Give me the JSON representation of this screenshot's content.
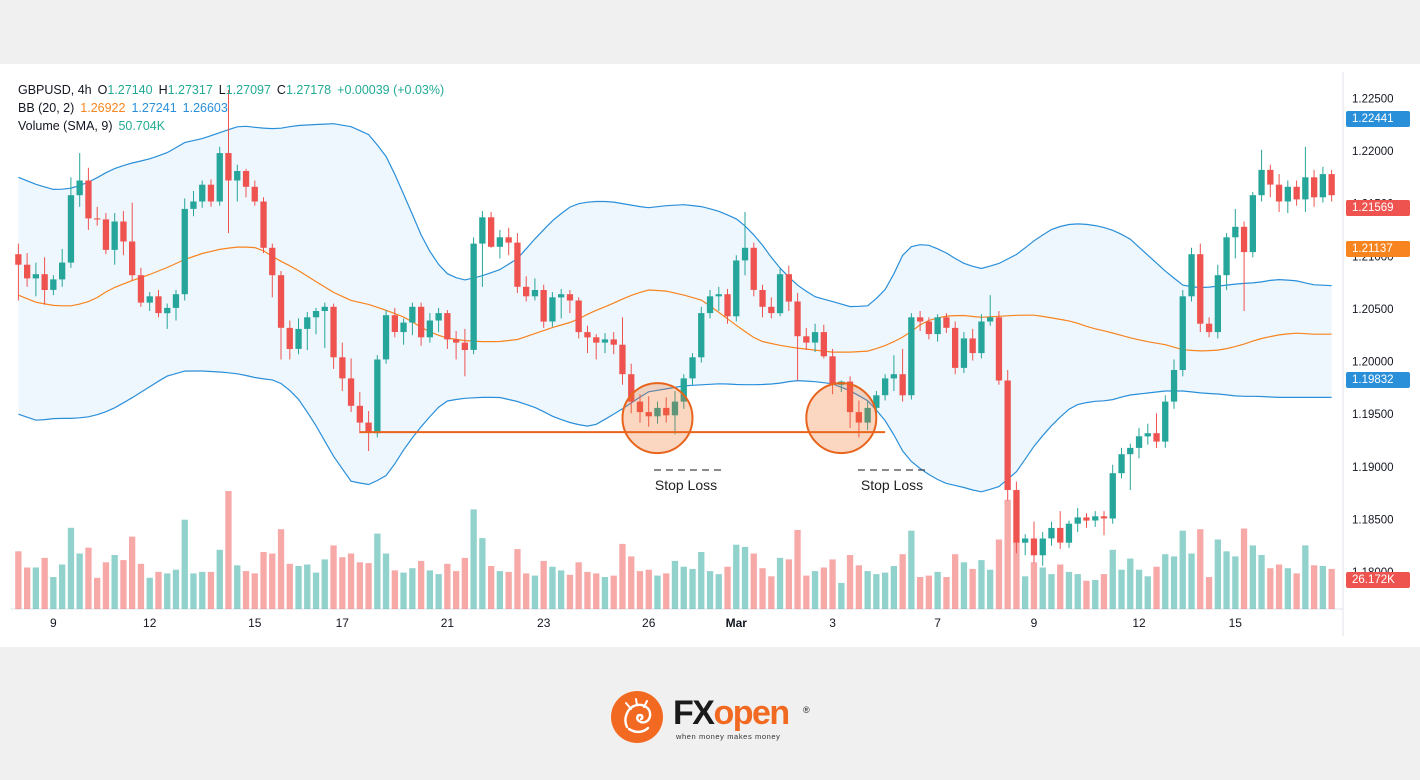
{
  "legend": {
    "symbol": "GBPUSD, 4h",
    "o_label": "O",
    "o": "1.27140",
    "h_label": "H",
    "h": "1.27317",
    "l_label": "L",
    "l": "1.27097",
    "c_label": "C",
    "c": "1.27178",
    "change": "+0.00039 (+0.03%)",
    "bb_label": "BB (20, 2)",
    "bb_basis": "1.26922",
    "bb_upper": "1.27241",
    "bb_lower": "1.26603",
    "vol_label": "Volume (SMA, 9)",
    "vol_value": "50.704K"
  },
  "price_axis_ticks": [
    "1.22500",
    "1.22000",
    "1.21500",
    "1.21000",
    "1.20500",
    "1.20000",
    "1.19500",
    "1.19000",
    "1.18500",
    "1.18000"
  ],
  "price_tags": [
    {
      "value": "1.22441",
      "color": "#2a8fd9"
    },
    {
      "value": "1.21569",
      "color": "#ef5350"
    },
    {
      "value": "1.21137",
      "color": "#f7841f"
    },
    {
      "value": "1.19832",
      "color": "#2a8fd9"
    },
    {
      "value": "26.172K",
      "color": "#ef5350"
    }
  ],
  "time_axis_labels": [
    "9",
    "12",
    "15",
    "17",
    "21",
    "23",
    "26",
    "Mar",
    "3",
    "7",
    "9",
    "12",
    "15"
  ],
  "annotations": {
    "stop_loss_1": "Stop Loss",
    "stop_loss_2": "Stop Loss",
    "support_level": 1.1933
  },
  "brand": {
    "name_fx": "FX",
    "name_open": "open",
    "registered": "®",
    "tagline": "when money makes money"
  },
  "colors": {
    "up": "#26a69a",
    "down": "#ef5350",
    "bb_band": "#2a8fd9",
    "bb_basis": "#f7841f",
    "support": "#e8641c"
  },
  "chart_data": {
    "type": "candlestick",
    "title": "",
    "symbol": "GBPUSD",
    "timeframe": "4h",
    "ylim": [
      1.1765,
      1.2275
    ],
    "candles": [
      {
        "o": 1.2102,
        "h": 1.2112,
        "l": 1.2058,
        "c": 1.2092
      },
      {
        "o": 1.2092,
        "h": 1.2103,
        "l": 1.2071,
        "c": 1.2079
      },
      {
        "o": 1.2079,
        "h": 1.2094,
        "l": 1.2062,
        "c": 1.2083
      },
      {
        "o": 1.2083,
        "h": 1.2099,
        "l": 1.2054,
        "c": 1.2068
      },
      {
        "o": 1.2068,
        "h": 1.2082,
        "l": 1.2063,
        "c": 1.2078
      },
      {
        "o": 1.2078,
        "h": 1.2107,
        "l": 1.2071,
        "c": 1.2094
      },
      {
        "o": 1.2094,
        "h": 1.2175,
        "l": 1.2089,
        "c": 1.2158
      },
      {
        "o": 1.2158,
        "h": 1.2198,
        "l": 1.2147,
        "c": 1.2172
      },
      {
        "o": 1.2172,
        "h": 1.2184,
        "l": 1.2125,
        "c": 1.2136
      },
      {
        "o": 1.2136,
        "h": 1.2147,
        "l": 1.2129,
        "c": 1.2135
      },
      {
        "o": 1.2135,
        "h": 1.2141,
        "l": 1.2102,
        "c": 1.2106
      },
      {
        "o": 1.2106,
        "h": 1.2141,
        "l": 1.2092,
        "c": 1.2133
      },
      {
        "o": 1.2133,
        "h": 1.2143,
        "l": 1.2101,
        "c": 1.2114
      },
      {
        "o": 1.2114,
        "h": 1.2151,
        "l": 1.2077,
        "c": 1.2082
      },
      {
        "o": 1.2082,
        "h": 1.2089,
        "l": 1.2052,
        "c": 1.2056
      },
      {
        "o": 1.2056,
        "h": 1.2066,
        "l": 1.2048,
        "c": 1.2062
      },
      {
        "o": 1.2062,
        "h": 1.2068,
        "l": 1.2042,
        "c": 1.2046
      },
      {
        "o": 1.2046,
        "h": 1.2055,
        "l": 1.2031,
        "c": 1.2051
      },
      {
        "o": 1.2051,
        "h": 1.2068,
        "l": 1.2039,
        "c": 1.2064
      },
      {
        "o": 1.2064,
        "h": 1.2155,
        "l": 1.2058,
        "c": 1.2145
      },
      {
        "o": 1.2145,
        "h": 1.2162,
        "l": 1.2138,
        "c": 1.2152
      },
      {
        "o": 1.2152,
        "h": 1.2172,
        "l": 1.2146,
        "c": 1.2168
      },
      {
        "o": 1.2168,
        "h": 1.2173,
        "l": 1.2147,
        "c": 1.2152
      },
      {
        "o": 1.2152,
        "h": 1.2204,
        "l": 1.2148,
        "c": 1.2198
      },
      {
        "o": 1.2198,
        "h": 1.2258,
        "l": 1.2122,
        "c": 1.2172
      },
      {
        "o": 1.2172,
        "h": 1.2187,
        "l": 1.2152,
        "c": 1.2181
      },
      {
        "o": 1.2181,
        "h": 1.2183,
        "l": 1.2156,
        "c": 1.2166
      },
      {
        "o": 1.2166,
        "h": 1.2172,
        "l": 1.2148,
        "c": 1.2152
      },
      {
        "o": 1.2152,
        "h": 1.2156,
        "l": 1.2103,
        "c": 1.2108
      },
      {
        "o": 1.2108,
        "h": 1.2112,
        "l": 1.2061,
        "c": 1.2082
      },
      {
        "o": 1.2082,
        "h": 1.2086,
        "l": 1.2002,
        "c": 1.2032
      },
      {
        "o": 1.2032,
        "h": 1.2039,
        "l": 1.2002,
        "c": 1.2012
      },
      {
        "o": 1.2012,
        "h": 1.2041,
        "l": 1.2007,
        "c": 1.2031
      },
      {
        "o": 1.2031,
        "h": 1.2047,
        "l": 1.2011,
        "c": 1.2042
      },
      {
        "o": 1.2042,
        "h": 1.2051,
        "l": 1.2026,
        "c": 1.2048
      },
      {
        "o": 1.2048,
        "h": 1.2056,
        "l": 1.2013,
        "c": 1.2052
      },
      {
        "o": 1.2052,
        "h": 1.2055,
        "l": 1.1993,
        "c": 1.2004
      },
      {
        "o": 1.2004,
        "h": 1.2018,
        "l": 1.1972,
        "c": 1.1984
      },
      {
        "o": 1.1984,
        "h": 1.2003,
        "l": 1.1952,
        "c": 1.1958
      },
      {
        "o": 1.1958,
        "h": 1.1971,
        "l": 1.1932,
        "c": 1.1942
      },
      {
        "o": 1.1942,
        "h": 1.1953,
        "l": 1.1915,
        "c": 1.1932
      },
      {
        "o": 1.1932,
        "h": 1.2006,
        "l": 1.1928,
        "c": 1.2002
      },
      {
        "o": 1.2002,
        "h": 1.2049,
        "l": 1.1998,
        "c": 1.2044
      },
      {
        "o": 1.2044,
        "h": 1.2051,
        "l": 1.2023,
        "c": 1.2028
      },
      {
        "o": 1.2028,
        "h": 1.2041,
        "l": 1.2016,
        "c": 1.2037
      },
      {
        "o": 1.2037,
        "h": 1.2056,
        "l": 1.2025,
        "c": 1.2052
      },
      {
        "o": 1.2052,
        "h": 1.2056,
        "l": 1.2015,
        "c": 1.2023
      },
      {
        "o": 1.2023,
        "h": 1.2046,
        "l": 1.2018,
        "c": 1.2039
      },
      {
        "o": 1.2039,
        "h": 1.2051,
        "l": 1.2028,
        "c": 1.2046
      },
      {
        "o": 1.2046,
        "h": 1.2049,
        "l": 1.2012,
        "c": 1.2021
      },
      {
        "o": 1.2021,
        "h": 1.2029,
        "l": 1.2002,
        "c": 1.2018
      },
      {
        "o": 1.2018,
        "h": 1.2031,
        "l": 1.1986,
        "c": 1.2011
      },
      {
        "o": 1.2011,
        "h": 1.2118,
        "l": 1.2007,
        "c": 1.2112
      },
      {
        "o": 1.2112,
        "h": 1.2143,
        "l": 1.2071,
        "c": 1.2137
      },
      {
        "o": 1.2137,
        "h": 1.2142,
        "l": 1.2108,
        "c": 1.2109
      },
      {
        "o": 1.2109,
        "h": 1.2125,
        "l": 1.2098,
        "c": 1.2118
      },
      {
        "o": 1.2118,
        "h": 1.2127,
        "l": 1.2101,
        "c": 1.2113
      },
      {
        "o": 1.2113,
        "h": 1.2122,
        "l": 1.2065,
        "c": 1.2071
      },
      {
        "o": 1.2071,
        "h": 1.2081,
        "l": 1.2057,
        "c": 1.2062
      },
      {
        "o": 1.2062,
        "h": 1.2079,
        "l": 1.2058,
        "c": 1.2068
      },
      {
        "o": 1.2068,
        "h": 1.2073,
        "l": 1.2032,
        "c": 1.2038
      },
      {
        "o": 1.2038,
        "h": 1.2066,
        "l": 1.2033,
        "c": 1.2061
      },
      {
        "o": 1.2061,
        "h": 1.2069,
        "l": 1.2041,
        "c": 1.2064
      },
      {
        "o": 1.2064,
        "h": 1.2068,
        "l": 1.2046,
        "c": 1.2058
      },
      {
        "o": 1.2058,
        "h": 1.2061,
        "l": 1.2022,
        "c": 1.2028
      },
      {
        "o": 1.2028,
        "h": 1.2034,
        "l": 1.2008,
        "c": 1.2023
      },
      {
        "o": 1.2023,
        "h": 1.2026,
        "l": 1.2002,
        "c": 1.2018
      },
      {
        "o": 1.2018,
        "h": 1.2027,
        "l": 1.2008,
        "c": 1.2021
      },
      {
        "o": 1.2021,
        "h": 1.2028,
        "l": 1.2007,
        "c": 1.2016
      },
      {
        "o": 1.2016,
        "h": 1.2042,
        "l": 1.1978,
        "c": 1.1988
      },
      {
        "o": 1.1988,
        "h": 1.1998,
        "l": 1.1951,
        "c": 1.1962
      },
      {
        "o": 1.1962,
        "h": 1.1969,
        "l": 1.1942,
        "c": 1.1952
      },
      {
        "o": 1.1952,
        "h": 1.1967,
        "l": 1.1938,
        "c": 1.1948
      },
      {
        "o": 1.1948,
        "h": 1.1962,
        "l": 1.1941,
        "c": 1.1956
      },
      {
        "o": 1.1956,
        "h": 1.1966,
        "l": 1.1942,
        "c": 1.1949
      },
      {
        "o": 1.1949,
        "h": 1.1972,
        "l": 1.1931,
        "c": 1.1962
      },
      {
        "o": 1.1962,
        "h": 1.1988,
        "l": 1.1955,
        "c": 1.1984
      },
      {
        "o": 1.1984,
        "h": 1.2008,
        "l": 1.1978,
        "c": 1.2004
      },
      {
        "o": 1.2004,
        "h": 1.2052,
        "l": 1.1999,
        "c": 1.2046
      },
      {
        "o": 1.2046,
        "h": 1.2068,
        "l": 1.2041,
        "c": 1.2062
      },
      {
        "o": 1.2062,
        "h": 1.2071,
        "l": 1.2048,
        "c": 1.2064
      },
      {
        "o": 1.2064,
        "h": 1.2069,
        "l": 1.2036,
        "c": 1.2043
      },
      {
        "o": 1.2043,
        "h": 1.2101,
        "l": 1.2038,
        "c": 1.2096
      },
      {
        "o": 1.2096,
        "h": 1.2142,
        "l": 1.2082,
        "c": 1.2108
      },
      {
        "o": 1.2108,
        "h": 1.2113,
        "l": 1.2062,
        "c": 1.2068
      },
      {
        "o": 1.2068,
        "h": 1.2073,
        "l": 1.2042,
        "c": 1.2052
      },
      {
        "o": 1.2052,
        "h": 1.2061,
        "l": 1.2041,
        "c": 1.2046
      },
      {
        "o": 1.2046,
        "h": 1.2088,
        "l": 1.2043,
        "c": 1.2083
      },
      {
        "o": 1.2083,
        "h": 1.2091,
        "l": 1.2048,
        "c": 1.2057
      },
      {
        "o": 1.2057,
        "h": 1.2065,
        "l": 1.1982,
        "c": 1.2024
      },
      {
        "o": 1.2024,
        "h": 1.2032,
        "l": 1.2011,
        "c": 1.2018
      },
      {
        "o": 1.2018,
        "h": 1.2036,
        "l": 1.2009,
        "c": 1.2028
      },
      {
        "o": 1.2028,
        "h": 1.2035,
        "l": 1.2003,
        "c": 1.2005
      },
      {
        "o": 1.2005,
        "h": 1.2012,
        "l": 1.1969,
        "c": 1.1978
      },
      {
        "o": 1.1978,
        "h": 1.1982,
        "l": 1.1971,
        "c": 1.1981
      },
      {
        "o": 1.1981,
        "h": 1.1986,
        "l": 1.1937,
        "c": 1.1952
      },
      {
        "o": 1.1952,
        "h": 1.1963,
        "l": 1.1928,
        "c": 1.1942
      },
      {
        "o": 1.1942,
        "h": 1.1962,
        "l": 1.1935,
        "c": 1.1956
      },
      {
        "o": 1.1956,
        "h": 1.1972,
        "l": 1.1949,
        "c": 1.1968
      },
      {
        "o": 1.1968,
        "h": 1.1988,
        "l": 1.1963,
        "c": 1.1984
      },
      {
        "o": 1.1984,
        "h": 1.2006,
        "l": 1.1972,
        "c": 1.1988
      },
      {
        "o": 1.1988,
        "h": 1.2012,
        "l": 1.1962,
        "c": 1.1968
      },
      {
        "o": 1.1968,
        "h": 1.2046,
        "l": 1.1964,
        "c": 1.2042
      },
      {
        "o": 1.2042,
        "h": 1.2048,
        "l": 1.2029,
        "c": 1.2038
      },
      {
        "o": 1.2038,
        "h": 1.2042,
        "l": 1.2021,
        "c": 1.2026
      },
      {
        "o": 1.2026,
        "h": 1.2045,
        "l": 1.2019,
        "c": 1.2042
      },
      {
        "o": 1.2042,
        "h": 1.2046,
        "l": 1.2027,
        "c": 1.2032
      },
      {
        "o": 1.2032,
        "h": 1.2038,
        "l": 1.1988,
        "c": 1.1994
      },
      {
        "o": 1.1994,
        "h": 1.2028,
        "l": 1.1989,
        "c": 1.2022
      },
      {
        "o": 1.2022,
        "h": 1.2031,
        "l": 1.2001,
        "c": 1.2008
      },
      {
        "o": 1.2008,
        "h": 1.2045,
        "l": 1.2003,
        "c": 1.2038
      },
      {
        "o": 1.2038,
        "h": 1.2063,
        "l": 1.2034,
        "c": 1.2042
      },
      {
        "o": 1.2042,
        "h": 1.2048,
        "l": 1.1978,
        "c": 1.1982
      },
      {
        "o": 1.1982,
        "h": 1.1992,
        "l": 1.1868,
        "c": 1.1878
      },
      {
        "o": 1.1878,
        "h": 1.1886,
        "l": 1.1818,
        "c": 1.1828
      },
      {
        "o": 1.1828,
        "h": 1.1836,
        "l": 1.1816,
        "c": 1.1832
      },
      {
        "o": 1.1832,
        "h": 1.1848,
        "l": 1.1809,
        "c": 1.1816
      },
      {
        "o": 1.1816,
        "h": 1.1838,
        "l": 1.1806,
        "c": 1.1832
      },
      {
        "o": 1.1832,
        "h": 1.1848,
        "l": 1.1825,
        "c": 1.1842
      },
      {
        "o": 1.1842,
        "h": 1.1858,
        "l": 1.1822,
        "c": 1.1828
      },
      {
        "o": 1.1828,
        "h": 1.1849,
        "l": 1.1823,
        "c": 1.1846
      },
      {
        "o": 1.1846,
        "h": 1.1861,
        "l": 1.1838,
        "c": 1.1852
      },
      {
        "o": 1.1852,
        "h": 1.1856,
        "l": 1.1842,
        "c": 1.1849
      },
      {
        "o": 1.1849,
        "h": 1.1858,
        "l": 1.1843,
        "c": 1.1853
      },
      {
        "o": 1.1853,
        "h": 1.1858,
        "l": 1.1835,
        "c": 1.1851
      },
      {
        "o": 1.1851,
        "h": 1.1902,
        "l": 1.1846,
        "c": 1.1894
      },
      {
        "o": 1.1894,
        "h": 1.1918,
        "l": 1.1889,
        "c": 1.1912
      },
      {
        "o": 1.1912,
        "h": 1.1922,
        "l": 1.1878,
        "c": 1.1918
      },
      {
        "o": 1.1918,
        "h": 1.1937,
        "l": 1.1908,
        "c": 1.1929
      },
      {
        "o": 1.1929,
        "h": 1.1941,
        "l": 1.1921,
        "c": 1.1932
      },
      {
        "o": 1.1932,
        "h": 1.1951,
        "l": 1.1918,
        "c": 1.1924
      },
      {
        "o": 1.1924,
        "h": 1.1968,
        "l": 1.1918,
        "c": 1.1962
      },
      {
        "o": 1.1962,
        "h": 1.2002,
        "l": 1.1955,
        "c": 1.1992
      },
      {
        "o": 1.1992,
        "h": 1.2068,
        "l": 1.1986,
        "c": 1.2062
      },
      {
        "o": 1.2062,
        "h": 1.2108,
        "l": 1.2057,
        "c": 1.2102
      },
      {
        "o": 1.2102,
        "h": 1.2112,
        "l": 1.2028,
        "c": 1.2036
      },
      {
        "o": 1.2036,
        "h": 1.2042,
        "l": 1.2023,
        "c": 1.2028
      },
      {
        "o": 1.2028,
        "h": 1.2092,
        "l": 1.2022,
        "c": 1.2082
      },
      {
        "o": 1.2082,
        "h": 1.2122,
        "l": 1.2068,
        "c": 1.2118
      },
      {
        "o": 1.2118,
        "h": 1.2145,
        "l": 1.2098,
        "c": 1.2128
      },
      {
        "o": 1.2128,
        "h": 1.2133,
        "l": 1.2048,
        "c": 1.2104
      },
      {
        "o": 1.2104,
        "h": 1.2161,
        "l": 1.2099,
        "c": 1.2158
      },
      {
        "o": 1.2158,
        "h": 1.2201,
        "l": 1.2152,
        "c": 1.2182
      },
      {
        "o": 1.2182,
        "h": 1.2187,
        "l": 1.2156,
        "c": 1.2168
      },
      {
        "o": 1.2168,
        "h": 1.2178,
        "l": 1.2142,
        "c": 1.2152
      },
      {
        "o": 1.2152,
        "h": 1.2172,
        "l": 1.2141,
        "c": 1.2166
      },
      {
        "o": 1.2166,
        "h": 1.2172,
        "l": 1.2148,
        "c": 1.2154
      },
      {
        "o": 1.2154,
        "h": 1.2204,
        "l": 1.2142,
        "c": 1.2175
      },
      {
        "o": 1.2175,
        "h": 1.2182,
        "l": 1.2147,
        "c": 1.2156
      },
      {
        "o": 1.2156,
        "h": 1.2185,
        "l": 1.2151,
        "c": 1.2178
      },
      {
        "o": 1.2178,
        "h": 1.2182,
        "l": 1.2152,
        "c": 1.2158
      }
    ],
    "bb_upper": [
      1.2175,
      1.2168,
      1.2163,
      1.2165,
      1.2172,
      1.2182,
      1.2188,
      1.2192,
      1.2198,
      1.2208,
      1.2212,
      1.2218,
      1.2224,
      1.2222,
      1.2221,
      1.2224,
      1.2225,
      1.2226,
      1.2223,
      1.2215,
      1.2192,
      1.2152,
      1.2111,
      1.2085,
      1.2077,
      1.2081,
      1.2087,
      1.2098,
      1.2118,
      1.2136,
      1.2149,
      1.2152,
      1.2152,
      1.2149,
      1.2146,
      1.2148,
      1.2149,
      1.2147,
      1.2142,
      1.2134,
      1.2116,
      1.2092,
      1.2074,
      1.2062,
      1.2057,
      1.2052,
      1.2053,
      1.2071,
      1.2108,
      1.2112,
      1.2105,
      1.2094,
      1.2088,
      1.2093,
      1.2102,
      1.2116,
      1.2127,
      1.2131,
      1.213,
      1.2126,
      1.2118,
      1.2102,
      1.2086,
      1.2072,
      1.207,
      1.2072,
      1.2074,
      1.2075,
      1.2078,
      1.2077,
      1.2073,
      1.2072
    ],
    "bb_basis": [
      1.2063,
      1.2056,
      1.2053,
      1.2053,
      1.2058,
      1.2069,
      1.2076,
      1.2082,
      1.2089,
      1.2097,
      1.2103,
      1.2107,
      1.2109,
      1.2108,
      1.2097,
      1.2088,
      1.2077,
      1.2066,
      1.2058,
      1.2054,
      1.2048,
      1.2041,
      1.203,
      1.2023,
      1.202,
      1.2019,
      1.2019,
      1.2021,
      1.2027,
      1.2033,
      1.2038,
      1.2047,
      1.2054,
      1.2062,
      1.2068,
      1.2067,
      1.2063,
      1.2058,
      1.2045,
      1.2032,
      1.202,
      1.2016,
      1.2013,
      1.2011,
      1.2009,
      1.2009,
      1.201,
      1.2016,
      1.2025,
      1.2038,
      1.2043,
      1.2044,
      1.2042,
      1.2043,
      1.2044,
      1.2044,
      1.2041,
      1.2038,
      1.2032,
      1.2028,
      1.2023,
      1.2019,
      1.2016,
      1.2011,
      1.201,
      1.2011,
      1.2015,
      1.2021,
      1.2025,
      1.2027,
      1.2026,
      1.2026
    ],
    "bb_lower": [
      1.195,
      1.1944,
      1.1946,
      1.1946,
      1.1948,
      1.1954,
      1.1964,
      1.1975,
      1.1986,
      1.1991,
      1.1991,
      1.199,
      1.1988,
      1.1984,
      1.1982,
      1.1968,
      1.1942,
      1.1911,
      1.1886,
      1.1883,
      1.1893,
      1.1921,
      1.1943,
      1.1962,
      1.1965,
      1.1966,
      1.1966,
      1.1962,
      1.1956,
      1.1947,
      1.1941,
      1.1938,
      1.1948,
      1.1959,
      1.1971,
      1.1974,
      1.1977,
      1.1978,
      1.1979,
      1.1978,
      1.1978,
      1.1979,
      1.1982,
      1.1981,
      1.1979,
      1.1972,
      1.1962,
      1.1941,
      1.1909,
      1.1895,
      1.1885,
      1.1881,
      1.1876,
      1.1881,
      1.1896,
      1.1922,
      1.1942,
      1.1958,
      1.1962,
      1.1963,
      1.1968,
      1.197,
      1.1972,
      1.1972,
      1.197,
      1.1969,
      1.1967,
      1.1967,
      1.1966,
      1.1966,
      1.1966,
      1.1966
    ]
  }
}
